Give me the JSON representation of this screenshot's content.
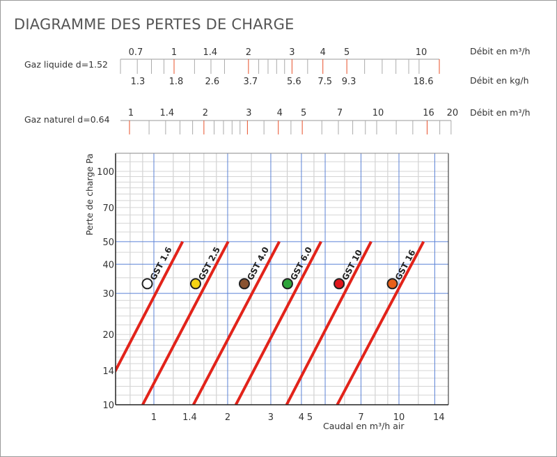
{
  "title": "DIAGRAMME DES PERTES DE CHARGE",
  "scales": {
    "liquid": {
      "label": "Gaz liquide d=1.52",
      "top_unit": "Débit en m³/h",
      "bottom_unit": "Débit en kg/h",
      "top_ticks": [
        "0.7",
        "1",
        "1.4",
        "2",
        "3",
        "4",
        "5",
        "10"
      ],
      "bottom_ticks": [
        "1.3",
        "1.8",
        "2.6",
        "3.7",
        "5.6",
        "7.5",
        "9.3",
        "18.6"
      ]
    },
    "natural": {
      "label": "Gaz naturel d=0.64",
      "unit": "Débit en m³/h",
      "ticks": [
        "1",
        "1.4",
        "2",
        "3",
        "4",
        "5",
        "7",
        "10",
        "16",
        "20"
      ]
    },
    "accent_color": "#e8502a"
  },
  "chart_data": {
    "type": "line",
    "x_scale": "log",
    "y_scale": "log",
    "xlabel": "Caudal en m³/h air",
    "ylabel": "Perte de charge Pa",
    "xlim": [
      0.7,
      16
    ],
    "ylim": [
      10,
      119
    ],
    "x_ticks": [
      "1",
      "1.4",
      "2",
      "3",
      "4",
      "5",
      "7",
      "10",
      "14"
    ],
    "y_ticks": [
      "10",
      "14",
      "20",
      "30",
      "40",
      "50",
      "70",
      "100"
    ],
    "grid": true,
    "line_color": "#e2231a",
    "series": [
      {
        "name": "GST 1.6",
        "points": [
          [
            0.59,
            10
          ],
          [
            1.31,
            50
          ]
        ],
        "marker": {
          "x": 0.94,
          "y": 33,
          "color": "#ffffff"
        }
      },
      {
        "name": "GST 2.5",
        "points": [
          [
            0.9,
            10
          ],
          [
            2.01,
            50
          ]
        ],
        "marker": {
          "x": 1.48,
          "y": 33,
          "color": "#f5d312"
        }
      },
      {
        "name": "GST 4.0",
        "points": [
          [
            1.45,
            10
          ],
          [
            3.25,
            50
          ]
        ],
        "marker": {
          "x": 2.34,
          "y": 33,
          "color": "#8a5330"
        }
      },
      {
        "name": "GST 6.0",
        "points": [
          [
            2.16,
            10
          ],
          [
            4.81,
            50
          ]
        ],
        "marker": {
          "x": 3.51,
          "y": 33,
          "color": "#2ea43a"
        }
      },
      {
        "name": "GST 10",
        "points": [
          [
            3.48,
            10
          ],
          [
            7.7,
            50
          ]
        ],
        "marker": {
          "x": 5.7,
          "y": 33,
          "color": "#e0161c"
        }
      },
      {
        "name": "GST 16",
        "points": [
          [
            5.6,
            10
          ],
          [
            12.6,
            50
          ]
        ],
        "marker": {
          "x": 9.4,
          "y": 33,
          "color": "#e8601a"
        }
      }
    ]
  }
}
